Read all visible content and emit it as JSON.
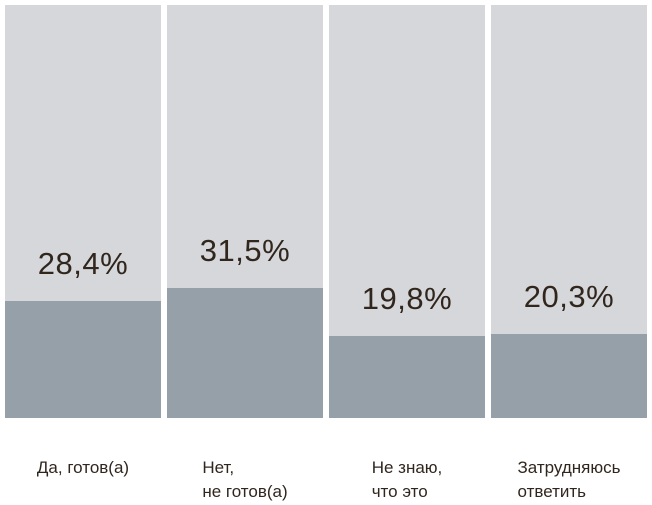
{
  "chart_data": {
    "type": "bar",
    "categories": [
      "Да, готов(а)",
      "Нет, не готов(а)",
      "Не знаю, что это",
      "Затрудняюсь ответить"
    ],
    "values": [
      28.4,
      31.5,
      19.8,
      20.3
    ],
    "value_labels": [
      "28,4%",
      "31,5%",
      "19,8%",
      "20,3%"
    ],
    "title": "",
    "xlabel": "",
    "ylabel": "",
    "ylim": [
      0,
      100
    ],
    "grid": false,
    "legend_position": "none",
    "colors": {
      "track": "#d6d7da",
      "fill": "#96a0a9",
      "text": "#30261e",
      "background": "#ffffff"
    }
  },
  "bars": [
    {
      "value": 28.4,
      "value_label": "28,4%",
      "label_lines": [
        "Да, готов(а)"
      ]
    },
    {
      "value": 31.5,
      "value_label": "31,5%",
      "label_lines": [
        "Нет,",
        "не готов(а)"
      ]
    },
    {
      "value": 19.8,
      "value_label": "19,8%",
      "label_lines": [
        "Не знаю,",
        "что это"
      ]
    },
    {
      "value": 20.3,
      "value_label": "20,3%",
      "label_lines": [
        "Затрудняюсь",
        "ответить"
      ]
    }
  ]
}
